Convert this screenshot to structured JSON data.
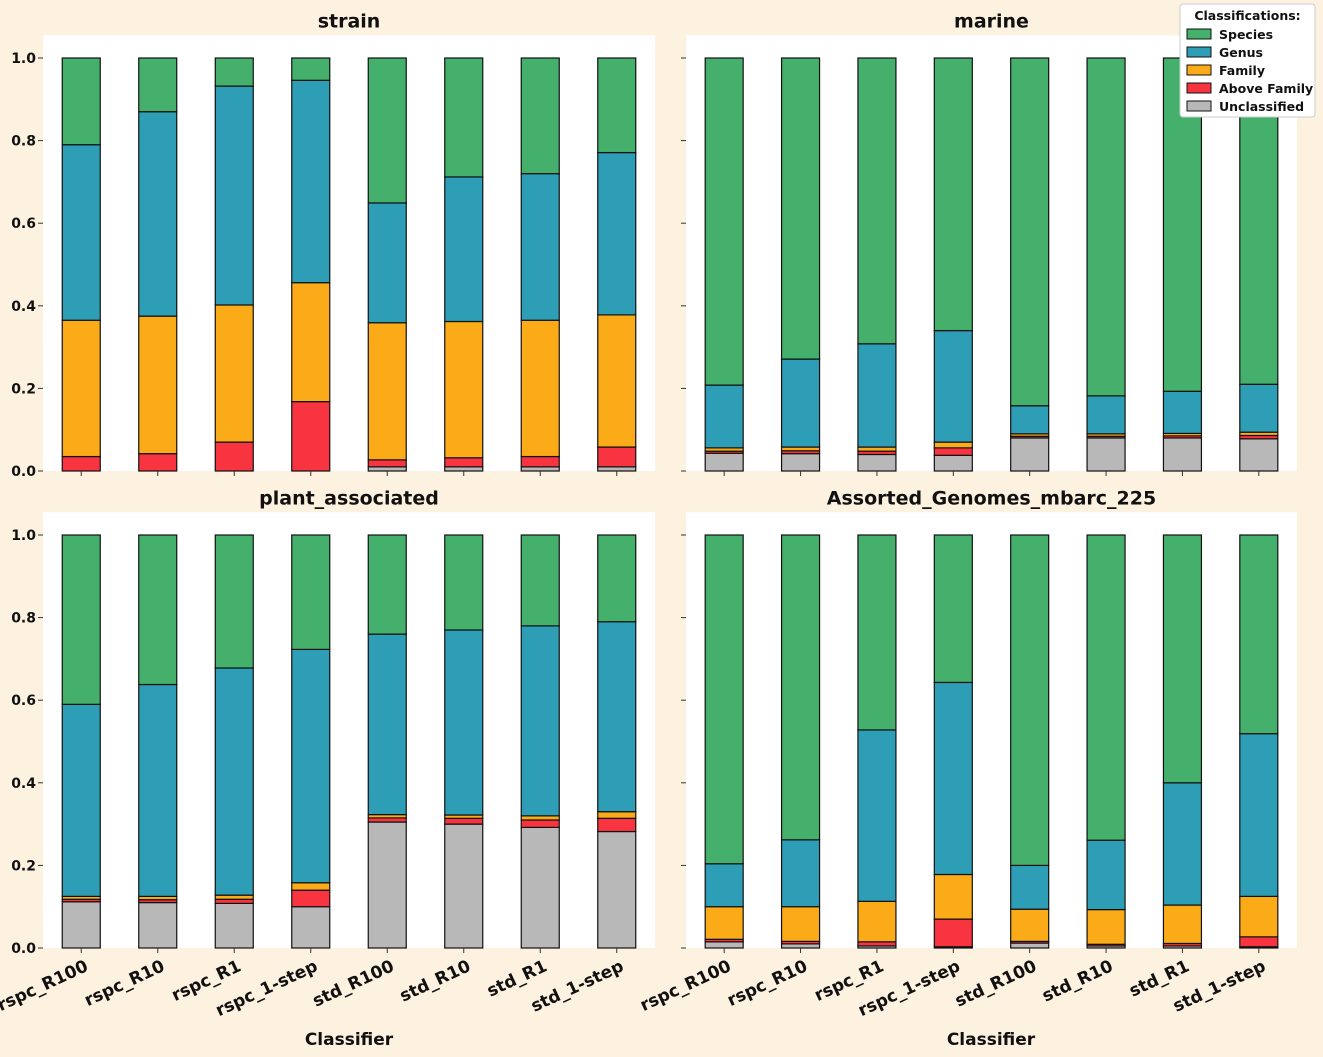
{
  "chart_data": {
    "type": "bar",
    "stacked": true,
    "categories": [
      "rspc_R100",
      "rspc_R10",
      "rspc_R1",
      "rspc_1-step",
      "std_R100",
      "std_R10",
      "std_R1",
      "std_1-step"
    ],
    "xlabel": "Classifier",
    "ylim": [
      0,
      1.05
    ],
    "yticks": [
      "0.0",
      "0.2",
      "0.4",
      "0.6",
      "0.8",
      "1.0"
    ],
    "grid": false,
    "legend": {
      "title": "Classifications:",
      "placement": "top-right",
      "entries": [
        {
          "name": "Species",
          "color": "#45b06b"
        },
        {
          "name": "Genus",
          "color": "#2e9db6"
        },
        {
          "name": "Family",
          "color": "#fbab18"
        },
        {
          "name": "Above Family",
          "color": "#f7343f"
        },
        {
          "name": "Unclassified",
          "color": "#b8b8b8"
        }
      ]
    },
    "stack_order": [
      "Unclassified",
      "Above Family",
      "Family",
      "Genus",
      "Species"
    ],
    "panels": [
      {
        "title": "strain",
        "series": [
          {
            "name": "Unclassified",
            "values": [
              0.0,
              0.0,
              0.0,
              0.0,
              0.01,
              0.01,
              0.01,
              0.01
            ]
          },
          {
            "name": "Above Family",
            "values": [
              0.035,
              0.042,
              0.07,
              0.168,
              0.017,
              0.022,
              0.025,
              0.048
            ]
          },
          {
            "name": "Family",
            "values": [
              0.33,
              0.333,
              0.332,
              0.288,
              0.332,
              0.33,
              0.33,
              0.32
            ]
          },
          {
            "name": "Genus",
            "values": [
              0.425,
              0.495,
              0.53,
              0.49,
              0.29,
              0.35,
              0.355,
              0.393
            ]
          },
          {
            "name": "Species",
            "values": [
              0.21,
              0.13,
              0.068,
              0.054,
              0.351,
              0.288,
              0.28,
              0.229
            ]
          }
        ]
      },
      {
        "title": "marine",
        "series": [
          {
            "name": "Unclassified",
            "values": [
              0.043,
              0.042,
              0.04,
              0.038,
              0.08,
              0.08,
              0.08,
              0.078
            ]
          },
          {
            "name": "Above Family",
            "values": [
              0.005,
              0.007,
              0.008,
              0.018,
              0.004,
              0.004,
              0.005,
              0.008
            ]
          },
          {
            "name": "Family",
            "values": [
              0.008,
              0.009,
              0.01,
              0.014,
              0.006,
              0.006,
              0.006,
              0.008
            ]
          },
          {
            "name": "Genus",
            "values": [
              0.152,
              0.213,
              0.25,
              0.27,
              0.068,
              0.092,
              0.102,
              0.116
            ]
          },
          {
            "name": "Species",
            "values": [
              0.792,
              0.729,
              0.692,
              0.66,
              0.842,
              0.818,
              0.807,
              0.79
            ]
          }
        ]
      },
      {
        "title": "plant_associated",
        "series": [
          {
            "name": "Unclassified",
            "values": [
              0.112,
              0.11,
              0.108,
              0.1,
              0.305,
              0.3,
              0.292,
              0.282
            ]
          },
          {
            "name": "Above Family",
            "values": [
              0.006,
              0.007,
              0.01,
              0.04,
              0.01,
              0.014,
              0.018,
              0.032
            ]
          },
          {
            "name": "Family",
            "values": [
              0.007,
              0.008,
              0.01,
              0.018,
              0.008,
              0.008,
              0.01,
              0.016
            ]
          },
          {
            "name": "Genus",
            "values": [
              0.465,
              0.513,
              0.55,
              0.565,
              0.437,
              0.448,
              0.46,
              0.46
            ]
          },
          {
            "name": "Species",
            "values": [
              0.41,
              0.362,
              0.322,
              0.277,
              0.24,
              0.23,
              0.22,
              0.21
            ]
          }
        ]
      },
      {
        "title": "Assorted_Genomes_mbarc_225",
        "series": [
          {
            "name": "Unclassified",
            "values": [
              0.015,
              0.01,
              0.005,
              0.003,
              0.012,
              0.005,
              0.005,
              0.003
            ]
          },
          {
            "name": "Above Family",
            "values": [
              0.006,
              0.006,
              0.01,
              0.067,
              0.004,
              0.004,
              0.006,
              0.024
            ]
          },
          {
            "name": "Family",
            "values": [
              0.079,
              0.084,
              0.098,
              0.108,
              0.078,
              0.084,
              0.093,
              0.098
            ]
          },
          {
            "name": "Genus",
            "values": [
              0.104,
              0.162,
              0.415,
              0.465,
              0.106,
              0.168,
              0.296,
              0.394
            ]
          },
          {
            "name": "Species",
            "values": [
              0.796,
              0.738,
              0.472,
              0.357,
              0.8,
              0.739,
              0.6,
              0.481
            ]
          }
        ]
      }
    ]
  }
}
